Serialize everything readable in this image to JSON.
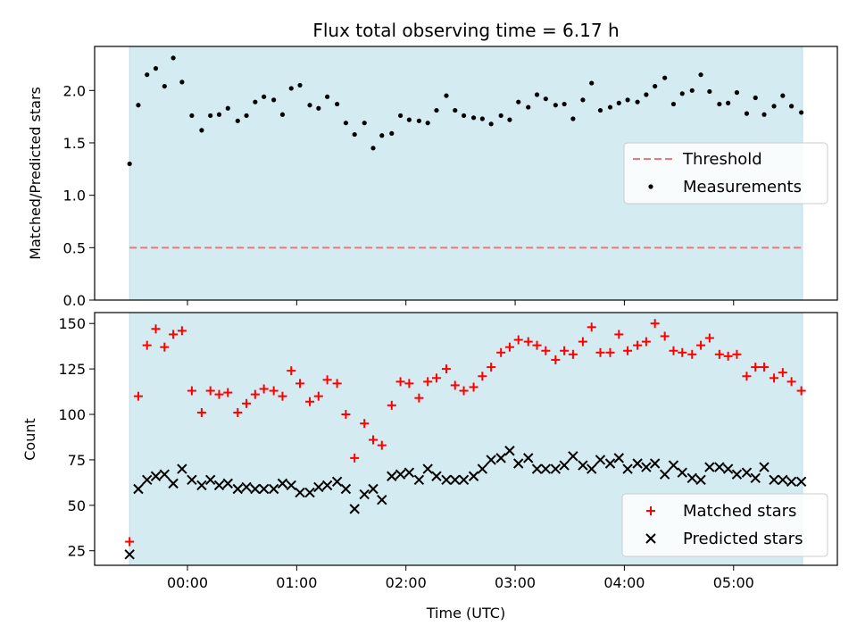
{
  "title": "Flux total observing time = 6.17 h",
  "top_panel": {
    "ylabel": "Matched/Predicted stars",
    "legend": {
      "threshold_label": "Threshold",
      "measurements_label": "Measurements"
    },
    "y_ticks": [
      "0.0",
      "0.5",
      "1.0",
      "1.5",
      "2.0"
    ]
  },
  "bottom_panel": {
    "ylabel": "Count",
    "legend": {
      "matched_label": "Matched stars",
      "predicted_label": "Predicted stars"
    },
    "y_ticks": [
      "25",
      "50",
      "75",
      "100",
      "125",
      "150"
    ]
  },
  "x_axis": {
    "xlabel": "Time (UTC)",
    "ticks": [
      "00:00",
      "01:00",
      "02:00",
      "03:00",
      "04:00",
      "05:00"
    ]
  },
  "colors": {
    "shade": "#d4ebf2",
    "threshold": "#ec7777",
    "matched": "#ff0000",
    "predicted": "#000000",
    "measurements": "#000000"
  },
  "chart_data": [
    {
      "type": "scatter",
      "title": "Flux total observing time = 6.17 h",
      "xlabel": "",
      "ylabel": "Matched/Predicted stars",
      "x_unit": "hours relative to 00:00 UTC",
      "xlim": [
        -0.85,
        5.95
      ],
      "ylim": [
        0.0,
        2.42
      ],
      "shaded_interval": [
        -0.53,
        5.63
      ],
      "threshold": {
        "name": "Threshold",
        "value": 0.5,
        "x_range": [
          -0.53,
          5.63
        ]
      },
      "legend_position": "center-right",
      "series": [
        {
          "name": "Measurements",
          "x": [
            -0.53,
            -0.45,
            -0.37,
            -0.29,
            -0.21,
            -0.13,
            -0.05,
            0.04,
            0.13,
            0.21,
            0.29,
            0.37,
            0.46,
            0.54,
            0.62,
            0.7,
            0.79,
            0.87,
            0.95,
            1.03,
            1.12,
            1.2,
            1.28,
            1.37,
            1.45,
            1.53,
            1.62,
            1.7,
            1.78,
            1.87,
            1.95,
            2.03,
            2.12,
            2.2,
            2.28,
            2.37,
            2.45,
            2.53,
            2.62,
            2.7,
            2.78,
            2.87,
            2.95,
            3.03,
            3.12,
            3.2,
            3.28,
            3.37,
            3.45,
            3.53,
            3.62,
            3.7,
            3.78,
            3.87,
            3.95,
            4.03,
            4.12,
            4.2,
            4.28,
            4.37,
            4.45,
            4.53,
            4.62,
            4.7,
            4.78,
            4.87,
            4.95,
            5.03,
            5.12,
            5.2,
            5.28,
            5.37,
            5.45,
            5.53,
            5.62
          ],
          "y": [
            1.3,
            1.86,
            2.15,
            2.21,
            2.04,
            2.31,
            2.08,
            1.76,
            1.62,
            1.76,
            1.77,
            1.83,
            1.71,
            1.76,
            1.89,
            1.94,
            1.91,
            1.77,
            2.02,
            2.05,
            1.86,
            1.83,
            1.94,
            1.87,
            1.69,
            1.58,
            1.69,
            1.45,
            1.57,
            1.59,
            1.76,
            1.72,
            1.71,
            1.69,
            1.81,
            1.95,
            1.81,
            1.76,
            1.74,
            1.73,
            1.68,
            1.76,
            1.72,
            1.89,
            1.84,
            1.96,
            1.92,
            1.86,
            1.87,
            1.73,
            1.91,
            2.07,
            1.81,
            1.84,
            1.88,
            1.91,
            1.89,
            1.96,
            2.04,
            2.12,
            1.87,
            1.97,
            2.0,
            2.15,
            1.99,
            1.87,
            1.88,
            1.98,
            1.78,
            1.93,
            1.77,
            1.85,
            1.95,
            1.85,
            1.79
          ]
        }
      ]
    },
    {
      "type": "scatter",
      "title": "",
      "xlabel": "Time (UTC)",
      "ylabel": "Count",
      "x_unit": "hours relative to 00:00 UTC",
      "xlim": [
        -0.85,
        5.95
      ],
      "ylim": [
        17,
        156
      ],
      "shaded_interval": [
        -0.53,
        5.63
      ],
      "legend_position": "lower-right",
      "x": [
        -0.53,
        -0.45,
        -0.37,
        -0.29,
        -0.21,
        -0.13,
        -0.05,
        0.04,
        0.13,
        0.21,
        0.29,
        0.37,
        0.46,
        0.54,
        0.62,
        0.7,
        0.79,
        0.87,
        0.95,
        1.03,
        1.12,
        1.2,
        1.28,
        1.37,
        1.45,
        1.53,
        1.62,
        1.7,
        1.78,
        1.87,
        1.95,
        2.03,
        2.12,
        2.2,
        2.28,
        2.37,
        2.45,
        2.53,
        2.62,
        2.7,
        2.78,
        2.87,
        2.95,
        3.03,
        3.12,
        3.2,
        3.28,
        3.37,
        3.45,
        3.53,
        3.62,
        3.7,
        3.78,
        3.87,
        3.95,
        4.03,
        4.12,
        4.2,
        4.28,
        4.37,
        4.45,
        4.53,
        4.62,
        4.7,
        4.78,
        4.87,
        4.95,
        5.03,
        5.12,
        5.2,
        5.28,
        5.37,
        5.45,
        5.53,
        5.62
      ],
      "series": [
        {
          "name": "Matched stars",
          "values": [
            30,
            110,
            138,
            147,
            137,
            144,
            146,
            113,
            101,
            113,
            111,
            112,
            101,
            106,
            111,
            114,
            113,
            110,
            124,
            117,
            107,
            110,
            119,
            117,
            100,
            76,
            95,
            86,
            83,
            105,
            118,
            117,
            109,
            118,
            120,
            125,
            116,
            113,
            115,
            121,
            126,
            134,
            137,
            141,
            140,
            138,
            135,
            130,
            135,
            133,
            140,
            148,
            134,
            134,
            144,
            135,
            138,
            140,
            150,
            143,
            135,
            134,
            133,
            138,
            142,
            133,
            132,
            133,
            121,
            126,
            126,
            120,
            123,
            118,
            113
          ]
        },
        {
          "name": "Predicted stars",
          "values": [
            23,
            59,
            64,
            66,
            67,
            62,
            70,
            64,
            61,
            64,
            61,
            62,
            59,
            60,
            59,
            59,
            59,
            62,
            61,
            57,
            57,
            60,
            61,
            63,
            59,
            48,
            56,
            59,
            53,
            66,
            67,
            68,
            64,
            70,
            66,
            64,
            64,
            64,
            66,
            70,
            75,
            76,
            80,
            73,
            76,
            70,
            70,
            70,
            72,
            77,
            72,
            70,
            75,
            73,
            76,
            70,
            73,
            71,
            73,
            67,
            72,
            68,
            65,
            64,
            71,
            71,
            70,
            67,
            68,
            65,
            71,
            64,
            64,
            63,
            63
          ]
        }
      ]
    }
  ]
}
